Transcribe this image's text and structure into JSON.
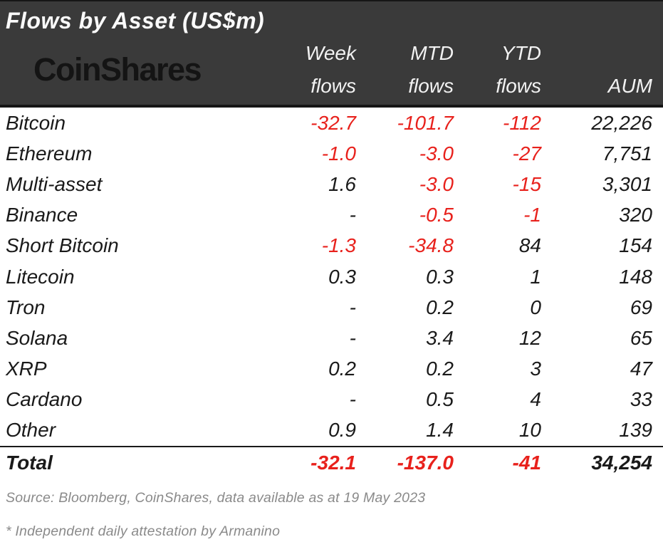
{
  "header": {
    "title": "Flows by Asset (US$m)",
    "logo_text": "CoinShares"
  },
  "table": {
    "header": {
      "week": [
        "Week",
        "flows"
      ],
      "mtd": [
        "MTD",
        "flows"
      ],
      "ytd": [
        "YTD",
        "flows"
      ],
      "aum": [
        "",
        "AUM"
      ]
    },
    "rows": [
      {
        "name": "Bitcoin",
        "week": "-32.7",
        "mtd": "-101.7",
        "ytd": "-112",
        "aum": "22,226"
      },
      {
        "name": "Ethereum",
        "week": "-1.0",
        "mtd": "-3.0",
        "ytd": "-27",
        "aum": "7,751"
      },
      {
        "name": "Multi-asset",
        "week": "1.6",
        "mtd": "-3.0",
        "ytd": "-15",
        "aum": "3,301"
      },
      {
        "name": "Binance",
        "week": "-",
        "mtd": "-0.5",
        "ytd": "-1",
        "aum": "320"
      },
      {
        "name": "Short Bitcoin",
        "week": "-1.3",
        "mtd": "-34.8",
        "ytd": "84",
        "aum": "154"
      },
      {
        "name": "Litecoin",
        "week": "0.3",
        "mtd": "0.3",
        "ytd": "1",
        "aum": "148"
      },
      {
        "name": "Tron",
        "week": "-",
        "mtd": "0.2",
        "ytd": "0",
        "aum": "69"
      },
      {
        "name": "Solana",
        "week": "-",
        "mtd": "3.4",
        "ytd": "12",
        "aum": "65"
      },
      {
        "name": "XRP",
        "week": "0.2",
        "mtd": "0.2",
        "ytd": "3",
        "aum": "47"
      },
      {
        "name": "Cardano",
        "week": "-",
        "mtd": "0.5",
        "ytd": "4",
        "aum": "33"
      },
      {
        "name": "Other",
        "week": "0.9",
        "mtd": "1.4",
        "ytd": "10",
        "aum": "139"
      }
    ],
    "total": {
      "name": "Total",
      "week": "-32.1",
      "mtd": "-137.0",
      "ytd": "-41",
      "aum": "34,254"
    }
  },
  "footer": {
    "source": "Source: Bloomberg, CoinShares, data available as at 19 May 2023",
    "attestation": "* Independent daily attestation by Armanino"
  },
  "colors": {
    "band_background": "#3a3a3a",
    "negative_red": "#e8211c",
    "text_black": "#1a1a1a",
    "footer_gray": "#8a8a8a"
  },
  "chart_data": {
    "type": "table",
    "title": "Flows by Asset (US$m)",
    "columns": [
      "Week flows",
      "MTD flows",
      "YTD flows",
      "AUM"
    ],
    "rows": [
      {
        "asset": "Bitcoin",
        "week_flows": -32.7,
        "mtd_flows": -101.7,
        "ytd_flows": -112,
        "aum": 22226
      },
      {
        "asset": "Ethereum",
        "week_flows": -1.0,
        "mtd_flows": -3.0,
        "ytd_flows": -27,
        "aum": 7751
      },
      {
        "asset": "Multi-asset",
        "week_flows": 1.6,
        "mtd_flows": -3.0,
        "ytd_flows": -15,
        "aum": 3301
      },
      {
        "asset": "Binance",
        "week_flows": null,
        "mtd_flows": -0.5,
        "ytd_flows": -1,
        "aum": 320
      },
      {
        "asset": "Short Bitcoin",
        "week_flows": -1.3,
        "mtd_flows": -34.8,
        "ytd_flows": 84,
        "aum": 154
      },
      {
        "asset": "Litecoin",
        "week_flows": 0.3,
        "mtd_flows": 0.3,
        "ytd_flows": 1,
        "aum": 148
      },
      {
        "asset": "Tron",
        "week_flows": null,
        "mtd_flows": 0.2,
        "ytd_flows": 0,
        "aum": 69
      },
      {
        "asset": "Solana",
        "week_flows": null,
        "mtd_flows": 3.4,
        "ytd_flows": 12,
        "aum": 65
      },
      {
        "asset": "XRP",
        "week_flows": 0.2,
        "mtd_flows": 0.2,
        "ytd_flows": 3,
        "aum": 47
      },
      {
        "asset": "Cardano",
        "week_flows": null,
        "mtd_flows": 0.5,
        "ytd_flows": 4,
        "aum": 33
      },
      {
        "asset": "Other",
        "week_flows": 0.9,
        "mtd_flows": 1.4,
        "ytd_flows": 10,
        "aum": 139
      }
    ],
    "total_row": {
      "asset": "Total",
      "week_flows": -32.1,
      "mtd_flows": -137.0,
      "ytd_flows": -41,
      "aum": 34254
    }
  }
}
